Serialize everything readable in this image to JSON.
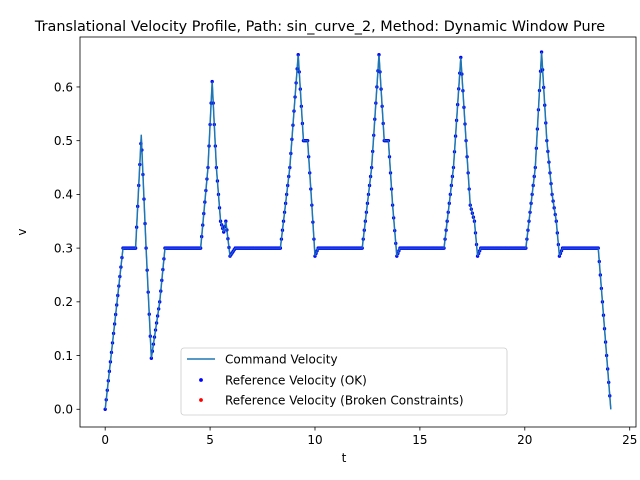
{
  "chart_data": {
    "type": "line",
    "title": "Translational Velocity Profile, Path: sin_curve_2, Method: Dynamic Window Pure",
    "xlabel": "t",
    "ylabel": "v",
    "xlim": [
      -1.2,
      25.3
    ],
    "ylim": [
      -0.033,
      0.693
    ],
    "xticks": [
      0,
      5,
      10,
      15,
      20,
      25
    ],
    "yticks": [
      0.0,
      0.1,
      0.2,
      0.3,
      0.4,
      0.5,
      0.6
    ],
    "xtick_labels": [
      "0",
      "5",
      "10",
      "15",
      "20",
      "25"
    ],
    "ytick_labels": [
      "0.0",
      "0.1",
      "0.2",
      "0.3",
      "0.4",
      "0.5",
      "0.6"
    ],
    "grid": false,
    "legend_position": "lower-center",
    "legend": [
      "Command Velocity",
      "Reference Velocity (OK)",
      "Reference Velocity (Broken Constraints)"
    ],
    "series": [
      {
        "name": "Command Velocity",
        "kind": "line",
        "color": "#1f77b4",
        "x": [
          0,
          0.85,
          1.45,
          1.72,
          1.95,
          2.2,
          2.6,
          2.85,
          4.55,
          4.9,
          5.1,
          5.3,
          5.5,
          5.65,
          5.75,
          5.95,
          6.2,
          8.35,
          8.8,
          9.2,
          9.45,
          9.65,
          9.85,
          10.0,
          10.15,
          12.25,
          12.7,
          13.05,
          13.3,
          13.5,
          13.7,
          13.9,
          14.05,
          16.15,
          16.6,
          16.95,
          17.2,
          17.4,
          17.6,
          17.75,
          17.9,
          20.05,
          20.5,
          20.8,
          21.05,
          21.3,
          21.5,
          21.65,
          21.8,
          23.5,
          24.1
        ],
        "y": [
          0,
          0.3,
          0.3,
          0.51,
          0.3,
          0.095,
          0.2,
          0.3,
          0.3,
          0.45,
          0.61,
          0.45,
          0.35,
          0.33,
          0.35,
          0.285,
          0.3,
          0.3,
          0.45,
          0.66,
          0.5,
          0.5,
          0.38,
          0.285,
          0.3,
          0.3,
          0.45,
          0.66,
          0.5,
          0.5,
          0.38,
          0.285,
          0.3,
          0.3,
          0.45,
          0.655,
          0.5,
          0.38,
          0.35,
          0.285,
          0.3,
          0.3,
          0.45,
          0.665,
          0.5,
          0.4,
          0.35,
          0.285,
          0.3,
          0.3,
          0
        ]
      },
      {
        "name": "Reference Velocity (OK)",
        "kind": "scatter",
        "color": "#0000ff",
        "x_same_as": "Command Velocity"
      },
      {
        "name": "Reference Velocity (Broken Constraints)",
        "kind": "scatter",
        "color": "#ff0000",
        "x": [],
        "y": []
      }
    ]
  }
}
